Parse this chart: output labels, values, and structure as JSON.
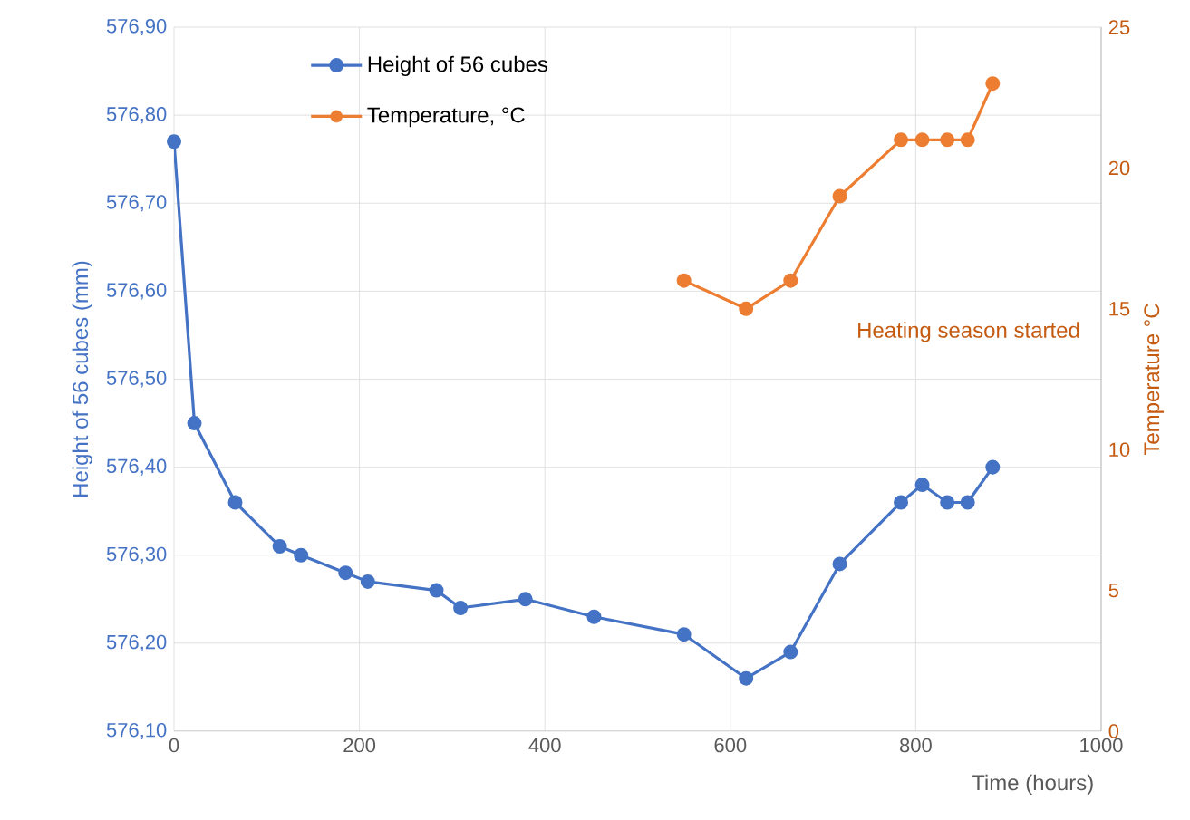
{
  "chart_data": {
    "type": "line",
    "xlabel": "Time (hours)",
    "ylabel": "Height of 56 cubes (mm)",
    "y2label": "Temperature °C",
    "xlim": [
      0,
      1000
    ],
    "xticks": [
      0,
      200,
      400,
      600,
      800,
      1000
    ],
    "ylim": [
      576.1,
      576.9
    ],
    "yticks": [
      {
        "value": 576.1,
        "label": "576,10"
      },
      {
        "value": 576.2,
        "label": "576,20"
      },
      {
        "value": 576.3,
        "label": "576,30"
      },
      {
        "value": 576.4,
        "label": "576,40"
      },
      {
        "value": 576.5,
        "label": "576,50"
      },
      {
        "value": 576.6,
        "label": "576,60"
      },
      {
        "value": 576.7,
        "label": "576,70"
      },
      {
        "value": 576.8,
        "label": "576,80"
      },
      {
        "value": 576.9,
        "label": "576,90"
      }
    ],
    "y2lim": [
      0,
      25
    ],
    "y2ticks": [
      0,
      5,
      10,
      15,
      20,
      25
    ],
    "grid": true,
    "legend": "top left",
    "marker": "circle",
    "line_style": "solid",
    "annotations": [
      "Heating season started"
    ],
    "series": [
      {
        "name": "Height of 56 cubes",
        "color": "#4472c4",
        "x": [
          0,
          22,
          66,
          114,
          137,
          185,
          209,
          283,
          309,
          379,
          453,
          550,
          617,
          665,
          718,
          784,
          807,
          834,
          856,
          883
        ],
        "values": [
          576.77,
          576.45,
          576.36,
          576.31,
          576.3,
          576.28,
          576.27,
          576.26,
          576.24,
          576.25,
          576.23,
          576.21,
          576.16,
          576.19,
          576.29,
          576.36,
          576.38,
          576.36,
          576.36,
          576.4
        ]
      },
      {
        "name": "Temperature, °C",
        "color": "#ed7d31",
        "axis": "y2",
        "x": [
          550,
          617,
          665,
          718,
          784,
          807,
          834,
          856,
          883
        ],
        "values": [
          16,
          15,
          16,
          19,
          21,
          21,
          21,
          21,
          23
        ]
      }
    ]
  }
}
